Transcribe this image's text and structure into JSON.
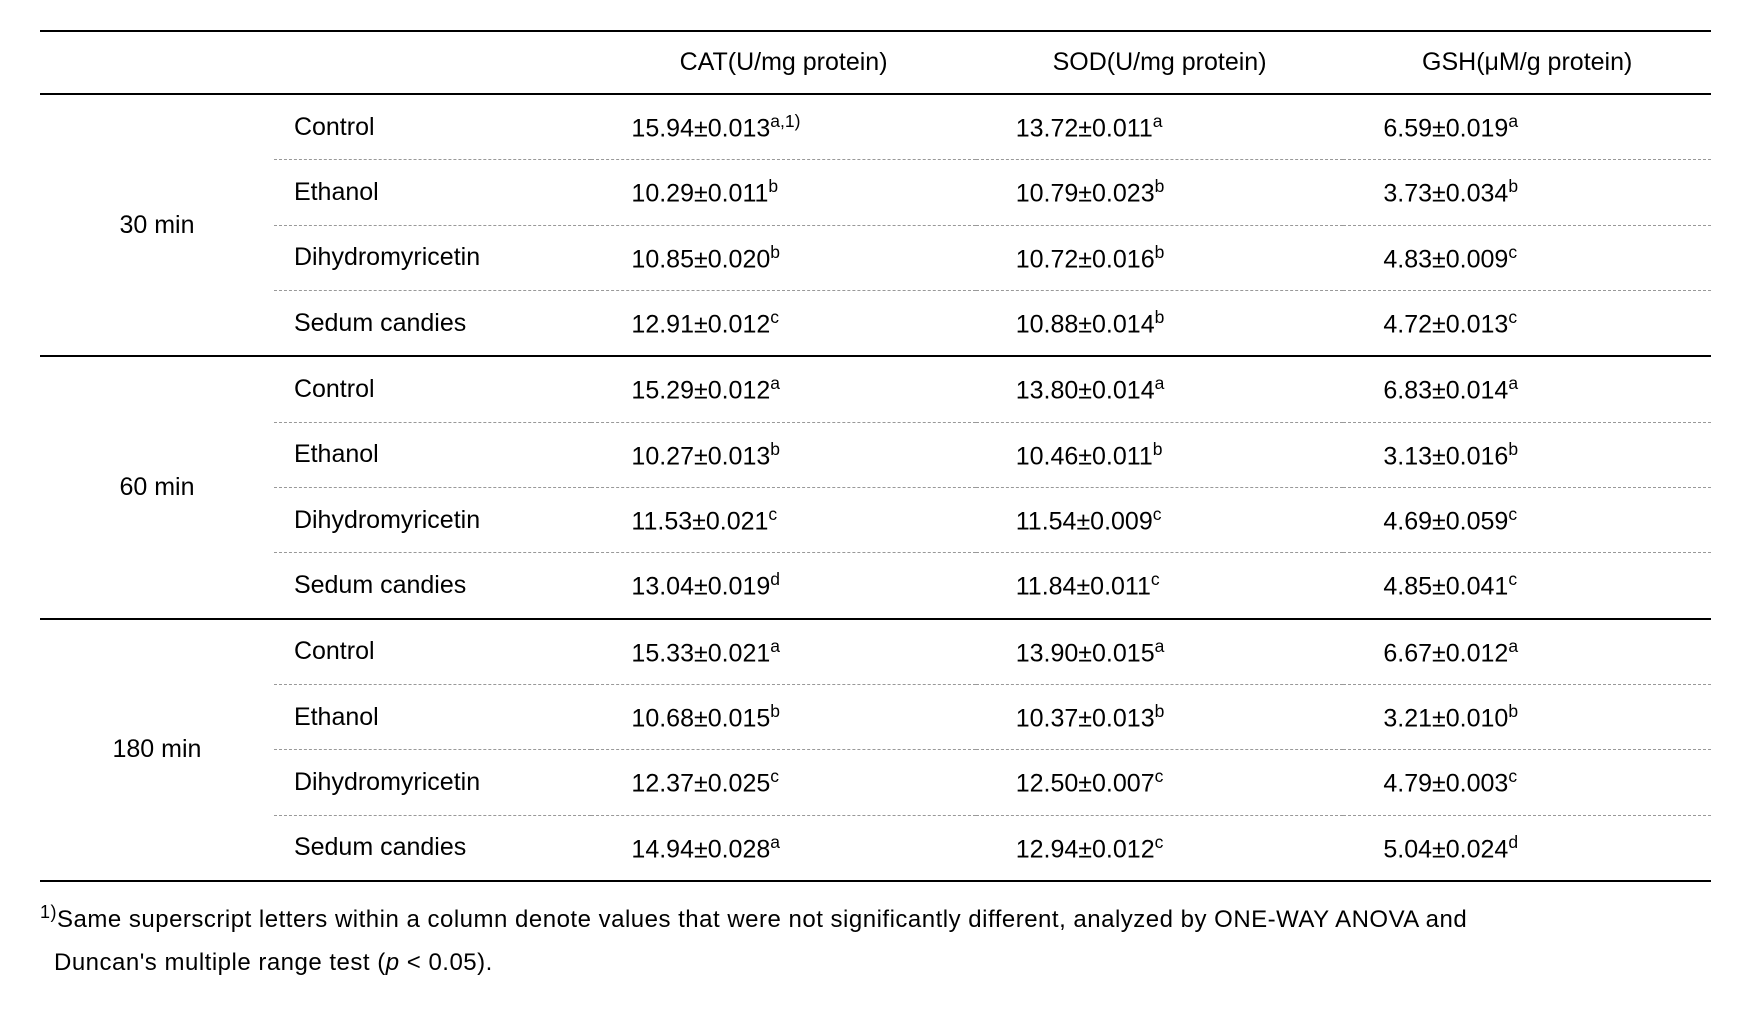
{
  "columns": {
    "c1": "",
    "c2": "",
    "c3": "CAT(U/mg protein)",
    "c4": "SOD(U/mg protein)",
    "c5": "GSH(μM/g protein)"
  },
  "groups": [
    {
      "time": "30 min",
      "rows": [
        {
          "treat": "Control",
          "cat": {
            "v": "15.94±0.013",
            "s": "a,1)"
          },
          "sod": {
            "v": "13.72±0.011",
            "s": "a"
          },
          "gsh": {
            "v": "6.59±0.019",
            "s": "a"
          }
        },
        {
          "treat": "Ethanol",
          "cat": {
            "v": "10.29±0.011",
            "s": "b"
          },
          "sod": {
            "v": "10.79±0.023",
            "s": "b"
          },
          "gsh": {
            "v": "3.73±0.034",
            "s": "b"
          }
        },
        {
          "treat": "Dihydromyricetin",
          "cat": {
            "v": "10.85±0.020",
            "s": "b"
          },
          "sod": {
            "v": "10.72±0.016",
            "s": "b"
          },
          "gsh": {
            "v": "4.83±0.009",
            "s": "c"
          }
        },
        {
          "treat": "Sedum candies",
          "cat": {
            "v": "12.91±0.012",
            "s": "c"
          },
          "sod": {
            "v": "10.88±0.014",
            "s": "b"
          },
          "gsh": {
            "v": "4.72±0.013",
            "s": "c"
          }
        }
      ]
    },
    {
      "time": "60 min",
      "rows": [
        {
          "treat": "Control",
          "cat": {
            "v": "15.29±0.012",
            "s": "a"
          },
          "sod": {
            "v": "13.80±0.014",
            "s": "a"
          },
          "gsh": {
            "v": "6.83±0.014",
            "s": "a"
          }
        },
        {
          "treat": "Ethanol",
          "cat": {
            "v": "10.27±0.013",
            "s": "b"
          },
          "sod": {
            "v": "10.46±0.011",
            "s": "b"
          },
          "gsh": {
            "v": "3.13±0.016",
            "s": "b"
          }
        },
        {
          "treat": "Dihydromyricetin",
          "cat": {
            "v": "11.53±0.021",
            "s": "c"
          },
          "sod": {
            "v": "11.54±0.009",
            "s": "c"
          },
          "gsh": {
            "v": "4.69±0.059",
            "s": "c"
          }
        },
        {
          "treat": "Sedum candies",
          "cat": {
            "v": "13.04±0.019",
            "s": "d"
          },
          "sod": {
            "v": "11.84±0.011",
            "s": "c"
          },
          "gsh": {
            "v": "4.85±0.041",
            "s": "c"
          }
        }
      ]
    },
    {
      "time": "180 min",
      "rows": [
        {
          "treat": "Control",
          "cat": {
            "v": "15.33±0.021",
            "s": "a"
          },
          "sod": {
            "v": "13.90±0.015",
            "s": "a"
          },
          "gsh": {
            "v": "6.67±0.012",
            "s": "a"
          }
        },
        {
          "treat": "Ethanol",
          "cat": {
            "v": "10.68±0.015",
            "s": "b"
          },
          "sod": {
            "v": "10.37±0.013",
            "s": "b"
          },
          "gsh": {
            "v": "3.21±0.010",
            "s": "b"
          }
        },
        {
          "treat": "Dihydromyricetin",
          "cat": {
            "v": "12.37±0.025",
            "s": "c"
          },
          "sod": {
            "v": "12.50±0.007",
            "s": "c"
          },
          "gsh": {
            "v": "4.79±0.003",
            "s": "c"
          }
        },
        {
          "treat": "Sedum candies",
          "cat": {
            "v": "14.94±0.028",
            "s": "a"
          },
          "sod": {
            "v": "12.94±0.012",
            "s": "c"
          },
          "gsh": {
            "v": "5.04±0.024",
            "s": "d"
          }
        }
      ]
    }
  ],
  "footnote": {
    "marker": "1)",
    "line1": "Same superscript letters within a column denote values that were not significantly different, analyzed by ONE-WAY ANOVA and",
    "line2_pre": "Duncan's multiple range test (",
    "p": "p",
    "line2_post": " < 0.05)."
  }
}
